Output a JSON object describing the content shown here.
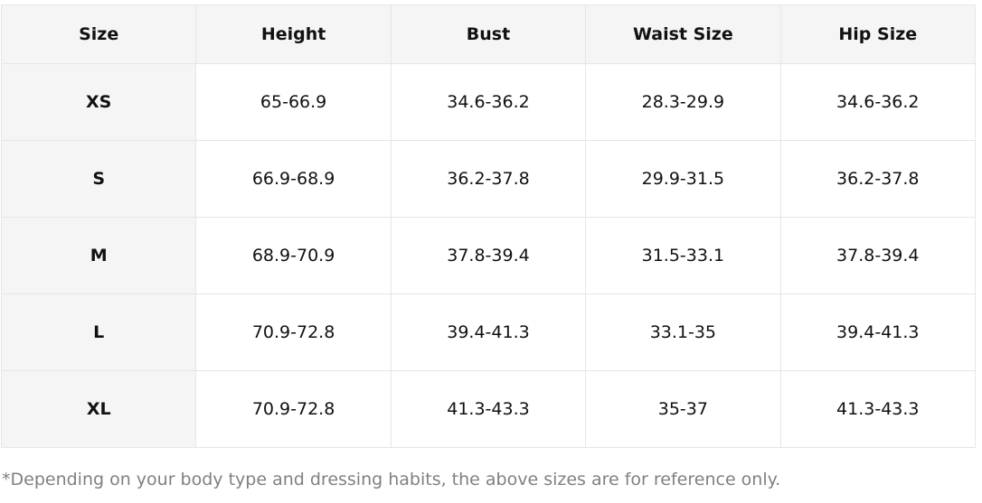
{
  "table": {
    "header": [
      "Size",
      "Height",
      "Bust",
      "Waist Size",
      "Hip Size"
    ],
    "rows": [
      [
        "XS",
        "65-66.9",
        "34.6-36.2",
        "28.3-29.9",
        "34.6-36.2"
      ],
      [
        "S",
        "66.9-68.9",
        "36.2-37.8",
        "29.9-31.5",
        "36.2-37.8"
      ],
      [
        "M",
        "68.9-70.9",
        "37.8-39.4",
        "31.5-33.1",
        "37.8-39.4"
      ],
      [
        "L",
        "70.9-72.8",
        "39.4-41.3",
        "33.1-35",
        "39.4-41.3"
      ],
      [
        "XL",
        "70.9-72.8",
        "41.3-43.3",
        "35-37",
        "41.3-43.3"
      ]
    ]
  },
  "footnote": "*Depending on your body type and dressing habits, the above sizes are for reference only."
}
